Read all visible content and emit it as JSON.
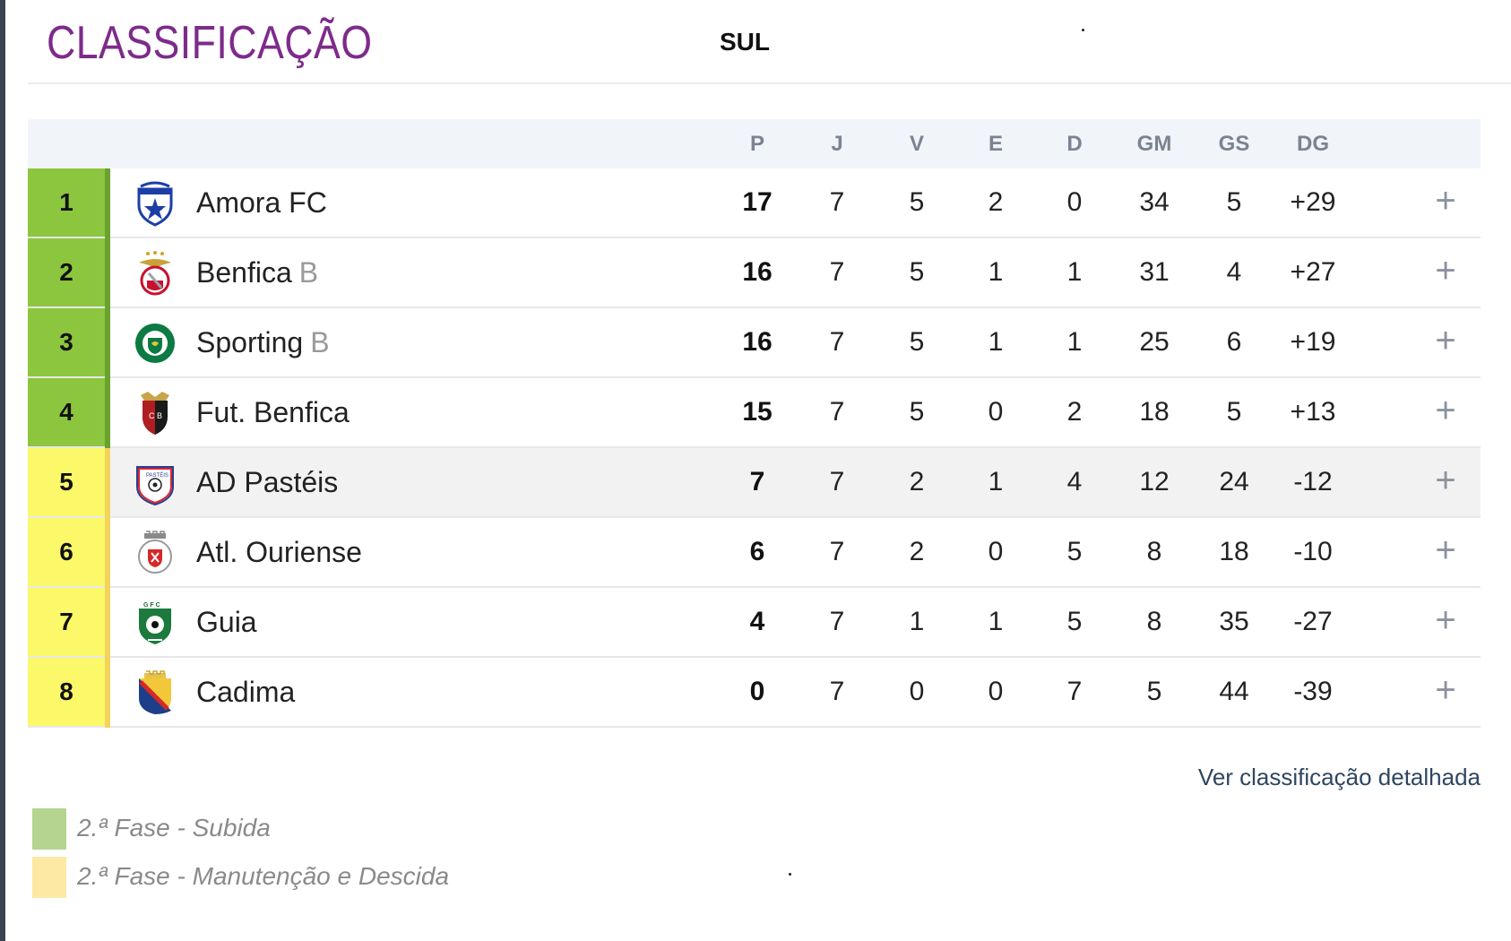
{
  "header": {
    "title": "CLASSIFICAÇÃO",
    "group": "SUL"
  },
  "table": {
    "columns": [
      "P",
      "J",
      "V",
      "E",
      "D",
      "GM",
      "GS",
      "DG"
    ],
    "rows": [
      {
        "pos": "1",
        "team": "Amora FC",
        "suffix": "",
        "crest": "amora-crest-icon",
        "zone": "subida",
        "P": "17",
        "J": "7",
        "V": "5",
        "E": "2",
        "D": "0",
        "GM": "34",
        "GS": "5",
        "DG": "+29"
      },
      {
        "pos": "2",
        "team": "Benfica",
        "suffix": "B",
        "crest": "benfica-crest-icon",
        "zone": "subida",
        "P": "16",
        "J": "7",
        "V": "5",
        "E": "1",
        "D": "1",
        "GM": "31",
        "GS": "4",
        "DG": "+27"
      },
      {
        "pos": "3",
        "team": "Sporting",
        "suffix": "B",
        "crest": "sporting-crest-icon",
        "zone": "subida",
        "P": "16",
        "J": "7",
        "V": "5",
        "E": "1",
        "D": "1",
        "GM": "25",
        "GS": "6",
        "DG": "+19"
      },
      {
        "pos": "4",
        "team": "Fut. Benfica",
        "suffix": "",
        "crest": "fut-benfica-crest-icon",
        "zone": "subida",
        "P": "15",
        "J": "7",
        "V": "5",
        "E": "0",
        "D": "2",
        "GM": "18",
        "GS": "5",
        "DG": "+13"
      },
      {
        "pos": "5",
        "team": "AD Pastéis",
        "suffix": "",
        "crest": "ad-pasteis-crest-icon",
        "zone": "manutencao",
        "P": "7",
        "J": "7",
        "V": "2",
        "E": "1",
        "D": "4",
        "GM": "12",
        "GS": "24",
        "DG": "-12"
      },
      {
        "pos": "6",
        "team": "Atl. Ouriense",
        "suffix": "",
        "crest": "atl-ouriense-crest-icon",
        "zone": "manutencao",
        "P": "6",
        "J": "7",
        "V": "2",
        "E": "0",
        "D": "5",
        "GM": "8",
        "GS": "18",
        "DG": "-10"
      },
      {
        "pos": "7",
        "team": "Guia",
        "suffix": "",
        "crest": "guia-crest-icon",
        "zone": "manutencao",
        "P": "4",
        "J": "7",
        "V": "1",
        "E": "1",
        "D": "5",
        "GM": "8",
        "GS": "35",
        "DG": "-27"
      },
      {
        "pos": "8",
        "team": "Cadima",
        "suffix": "",
        "crest": "cadima-crest-icon",
        "zone": "manutencao",
        "P": "0",
        "J": "7",
        "V": "0",
        "E": "0",
        "D": "7",
        "GM": "5",
        "GS": "44",
        "DG": "-39"
      }
    ],
    "highlighted_row": 4,
    "expand_icon": "plus-icon"
  },
  "zone_colors": {
    "subida": {
      "cell": "#8cc63f",
      "stripe": "#6aa22f"
    },
    "manutencao": {
      "cell": "#fbf96a",
      "stripe": "#f3d35a"
    }
  },
  "detail_link": "Ver classificação detalhada",
  "legend": [
    {
      "label": "2.ª Fase - Subida",
      "color": "#b4d490"
    },
    {
      "label": "2.ª Fase - Manutenção e Descida",
      "color": "#fde9a3"
    }
  ]
}
